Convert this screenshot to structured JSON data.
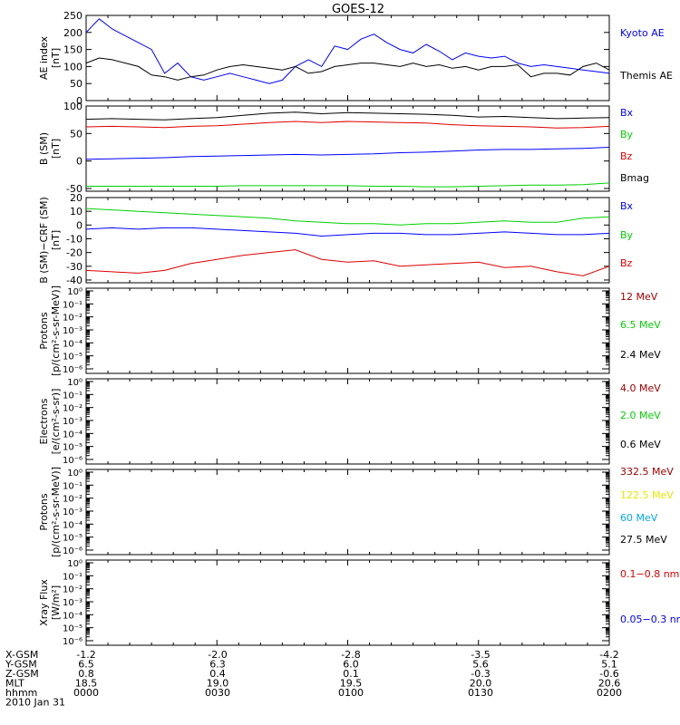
{
  "title": "GOES-12",
  "colors": {
    "black": "#000000",
    "blue": "#0000ff",
    "red": "#dd0000",
    "green": "#00d000",
    "darkred": "#a00000",
    "yellow": "#e8e800",
    "cyan": "#00aaee"
  },
  "chart_data": [
    {
      "type": "line",
      "ylabel": [
        "AE index",
        "[nT]"
      ],
      "ylim": [
        0,
        250
      ],
      "yticks": [
        "0",
        "50",
        "100",
        "150",
        "200",
        "250"
      ],
      "x": [
        0,
        3,
        6,
        9,
        12,
        15,
        18,
        21,
        24,
        27,
        30,
        33,
        36,
        39,
        42,
        45,
        48,
        51,
        54,
        57,
        60,
        63,
        66,
        69,
        72,
        75,
        78,
        81,
        84,
        87,
        90,
        93,
        96,
        99,
        102,
        105,
        108,
        111,
        114,
        117,
        120
      ],
      "series": [
        {
          "name": "Kyoto AE",
          "color": "blue",
          "values": [
            200,
            240,
            210,
            190,
            170,
            150,
            80,
            110,
            70,
            60,
            70,
            80,
            70,
            60,
            50,
            60,
            100,
            120,
            100,
            160,
            150,
            180,
            195,
            170,
            150,
            140,
            165,
            145,
            120,
            140,
            130,
            125,
            130,
            110,
            100,
            105,
            100,
            95,
            90,
            85,
            80
          ]
        },
        {
          "name": "Themis AE",
          "color": "black",
          "values": [
            110,
            125,
            120,
            110,
            100,
            75,
            70,
            60,
            70,
            75,
            90,
            100,
            105,
            100,
            95,
            90,
            100,
            80,
            85,
            100,
            105,
            110,
            110,
            105,
            100,
            110,
            100,
            105,
            95,
            100,
            90,
            100,
            100,
            105,
            70,
            80,
            80,
            75,
            100,
            110,
            90
          ]
        }
      ]
    },
    {
      "type": "line",
      "ylabel": [
        "B (SM)",
        "[nT]"
      ],
      "ylim": [
        -55,
        100
      ],
      "yticks": [
        "-50",
        "0",
        "50",
        "100"
      ],
      "ytickvals": [
        -50,
        0,
        50,
        100
      ],
      "x": [
        0,
        6,
        12,
        18,
        24,
        30,
        36,
        42,
        48,
        54,
        60,
        66,
        72,
        78,
        84,
        90,
        96,
        102,
        108,
        114,
        120
      ],
      "series": [
        {
          "name": "Bx",
          "color": "blue",
          "values": [
            3,
            4,
            5,
            6,
            8,
            9,
            10,
            11,
            12,
            11,
            12,
            13,
            15,
            16,
            18,
            20,
            21,
            21,
            22,
            23,
            25
          ]
        },
        {
          "name": "By",
          "color": "green",
          "values": [
            -46,
            -46,
            -46,
            -46,
            -46,
            -46,
            -45,
            -45,
            -45,
            -45,
            -45,
            -46,
            -46,
            -47,
            -47,
            -46,
            -45,
            -44,
            -44,
            -43,
            -40
          ]
        },
        {
          "name": "Bz",
          "color": "red",
          "values": [
            62,
            63,
            62,
            61,
            63,
            64,
            67,
            70,
            72,
            70,
            72,
            71,
            70,
            69,
            66,
            64,
            63,
            62,
            60,
            61,
            63
          ]
        },
        {
          "name": "Bmag",
          "color": "black",
          "values": [
            76,
            77,
            76,
            75,
            77,
            79,
            83,
            87,
            89,
            86,
            88,
            87,
            86,
            85,
            83,
            80,
            81,
            79,
            77,
            78,
            79
          ]
        }
      ]
    },
    {
      "type": "line",
      "ylabel": [
        "B (SM)−CRF (SM)",
        "[nT]"
      ],
      "ylim": [
        -42,
        20
      ],
      "yticks": [
        "-40",
        "-30",
        "-20",
        "-10",
        "0",
        "10",
        "20"
      ],
      "ytickvals": [
        -40,
        -30,
        -20,
        -10,
        0,
        10,
        20
      ],
      "x": [
        0,
        6,
        12,
        18,
        24,
        30,
        36,
        42,
        48,
        54,
        60,
        66,
        72,
        78,
        84,
        90,
        96,
        102,
        108,
        114,
        120
      ],
      "series": [
        {
          "name": "Bx",
          "color": "blue",
          "values": [
            -3,
            -2,
            -3,
            -2,
            -2,
            -3,
            -4,
            -5,
            -6,
            -8,
            -7,
            -6,
            -6,
            -7,
            -7,
            -6,
            -5,
            -6,
            -7,
            -7,
            -6
          ]
        },
        {
          "name": "By",
          "color": "green",
          "values": [
            12,
            11,
            10,
            9,
            8,
            7,
            6,
            5,
            3,
            2,
            1,
            1,
            0,
            1,
            1,
            2,
            3,
            2,
            2,
            5,
            6
          ]
        },
        {
          "name": "Bz",
          "color": "red",
          "values": [
            -33,
            -34,
            -35,
            -33,
            -28,
            -25,
            -22,
            -20,
            -18,
            -25,
            -27,
            -26,
            -30,
            -29,
            -28,
            -27,
            -31,
            -30,
            -34,
            -37,
            -30
          ]
        }
      ]
    },
    {
      "type": "line",
      "log": true,
      "ylabel": [
        "Protons",
        "[p/(cm²-s-sr-MeV)]"
      ],
      "yticks": [
        "10⁰",
        "10⁻¹",
        "10⁻²",
        "10⁻³",
        "10⁻⁴",
        "10⁻⁵",
        "10⁻⁶"
      ],
      "series": [
        {
          "name": "12 MeV",
          "color": "darkred"
        },
        {
          "name": "6.5 MeV",
          "color": "green"
        },
        {
          "name": "2.4 MeV",
          "color": "black"
        }
      ]
    },
    {
      "type": "line",
      "log": true,
      "ylabel": [
        "Electrons",
        "[e/(cm²-s-sr)]"
      ],
      "yticks": [
        "10⁰",
        "10⁻¹",
        "10⁻²",
        "10⁻³",
        "10⁻⁴",
        "10⁻⁵",
        "10⁻⁶"
      ],
      "series": [
        {
          "name": "4.0 MeV",
          "color": "darkred"
        },
        {
          "name": "2.0 MeV",
          "color": "green"
        },
        {
          "name": "0.6 MeV",
          "color": "black"
        }
      ]
    },
    {
      "type": "line",
      "log": true,
      "ylabel": [
        "Protons",
        "[p/(cm²-s-sr-MeV)]"
      ],
      "yticks": [
        "10⁰",
        "10⁻¹",
        "10⁻²",
        "10⁻³",
        "10⁻⁴",
        "10⁻⁵",
        "10⁻⁶"
      ],
      "series": [
        {
          "name": "332.5 MeV",
          "color": "darkred"
        },
        {
          "name": "122.5 MeV",
          "color": "yellow"
        },
        {
          "name": "60 MeV",
          "color": "cyan"
        },
        {
          "name": "27.5 MeV",
          "color": "black"
        }
      ]
    },
    {
      "type": "line",
      "log": true,
      "ylabel": [
        "Xray  Flux",
        "[W/m²]"
      ],
      "yticks": [
        "10⁰",
        "10⁻¹",
        "10⁻²",
        "10⁻³",
        "10⁻⁴",
        "10⁻⁵",
        "10⁻⁶"
      ],
      "series": [
        {
          "name": "0.1−0.8 nm",
          "color": "red"
        },
        {
          "name": "0.05−0.3 nm",
          "color": "blue"
        }
      ]
    }
  ],
  "xaxis": {
    "rows": [
      {
        "label": "X-GSM",
        "values": [
          "-1.2",
          "-2.0",
          "-2.8",
          "-3.5",
          "-4.2"
        ]
      },
      {
        "label": "Y-GSM",
        "values": [
          "6.5",
          "6.3",
          "6.0",
          "5.6",
          "5.1"
        ]
      },
      {
        "label": "Z-GSM",
        "values": [
          "0.8",
          "0.4",
          "0.1",
          "-0.3",
          "-0.6"
        ]
      },
      {
        "label": "MLT",
        "values": [
          "18.5",
          "19.0",
          "19.5",
          "20.0",
          "20.6"
        ]
      },
      {
        "label": "hhmm",
        "values": [
          "0000",
          "0030",
          "0100",
          "0130",
          "0200"
        ]
      }
    ],
    "date": "2010 Jan 31",
    "xlim": [
      0,
      120
    ]
  }
}
